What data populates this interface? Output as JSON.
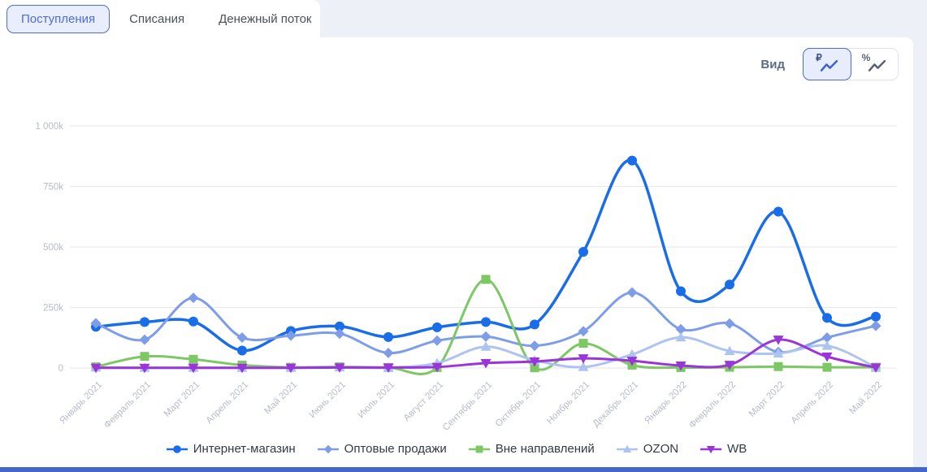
{
  "tabs": [
    {
      "id": "postupleniya",
      "label": "Поступления",
      "active": true
    },
    {
      "id": "spisaniya",
      "label": "Списания",
      "active": false
    },
    {
      "id": "denezhny-potok",
      "label": "Денежный поток",
      "active": false
    }
  ],
  "view_control": {
    "label": "Вид",
    "options": [
      {
        "id": "rubles",
        "symbol": "₽",
        "icon": "line-chart-icon",
        "active": true
      },
      {
        "id": "percent",
        "symbol": "%",
        "icon": "line-chart-icon",
        "active": false
      }
    ]
  },
  "chart_data": {
    "type": "line",
    "title": "",
    "xlabel": "",
    "ylabel": "",
    "values_unit": "thousands",
    "ylim": [
      0,
      1000
    ],
    "grid": true,
    "legend_position": "bottom",
    "x_label_rotation": -45,
    "y_ticks": [
      {
        "value": 0,
        "label": "0"
      },
      {
        "value": 250,
        "label": "250k"
      },
      {
        "value": 500,
        "label": "500k"
      },
      {
        "value": 750,
        "label": "750k"
      },
      {
        "value": 1000,
        "label": "1 000k"
      }
    ],
    "categories": [
      "Январь 2021",
      "Февраль 2021",
      "Март 2021",
      "Апрель 2021",
      "Май 2021",
      "Июнь 2021",
      "Июль 2021",
      "Август 2021",
      "Сентябрь 2021",
      "Октябрь 2021",
      "Ноябрь 2021",
      "Декабрь 2021",
      "Январь 2022",
      "Февраль 2022",
      "Март 2022",
      "Апрель 2022",
      "Май 2022"
    ],
    "series": [
      {
        "name": "Интернет-магазин",
        "color": "#1a6de8",
        "marker": "circle",
        "values": [
          170,
          190,
          192,
          72,
          153,
          172,
          128,
          168,
          190,
          180,
          480,
          857,
          317,
          345,
          646,
          207,
          212
        ]
      },
      {
        "name": "Оптовые продажи",
        "color": "#7e9de9",
        "marker": "diamond",
        "values": [
          185,
          117,
          290,
          126,
          134,
          142,
          62,
          113,
          130,
          92,
          152,
          312,
          160,
          184,
          66,
          126,
          174
        ]
      },
      {
        "name": "Вне направлений",
        "color": "#7ec765",
        "marker": "square",
        "values": [
          5,
          48,
          36,
          12,
          3,
          5,
          2,
          2,
          366,
          1,
          102,
          12,
          2,
          3,
          6,
          3,
          3
        ]
      },
      {
        "name": "OZON",
        "color": "#adc4f1",
        "marker": "triangle-up",
        "values": [
          2,
          1,
          1,
          1,
          1,
          3,
          1,
          20,
          88,
          32,
          4,
          56,
          127,
          70,
          60,
          92,
          3
        ]
      },
      {
        "name": "WB",
        "color": "#9a35d9",
        "marker": "triangle-down",
        "values": [
          1,
          1,
          1,
          1,
          1,
          2,
          2,
          4,
          20,
          27,
          40,
          30,
          10,
          13,
          117,
          47,
          2
        ]
      }
    ]
  },
  "colors": {
    "page_background": "#eef0f7",
    "panel_background": "#ffffff",
    "accent": "#4f6bd8",
    "grid_line": "#e9eaef",
    "axis_text": "#b7bcc7",
    "legend_text": "#333a45",
    "bottom_bar": "#4565cd"
  }
}
